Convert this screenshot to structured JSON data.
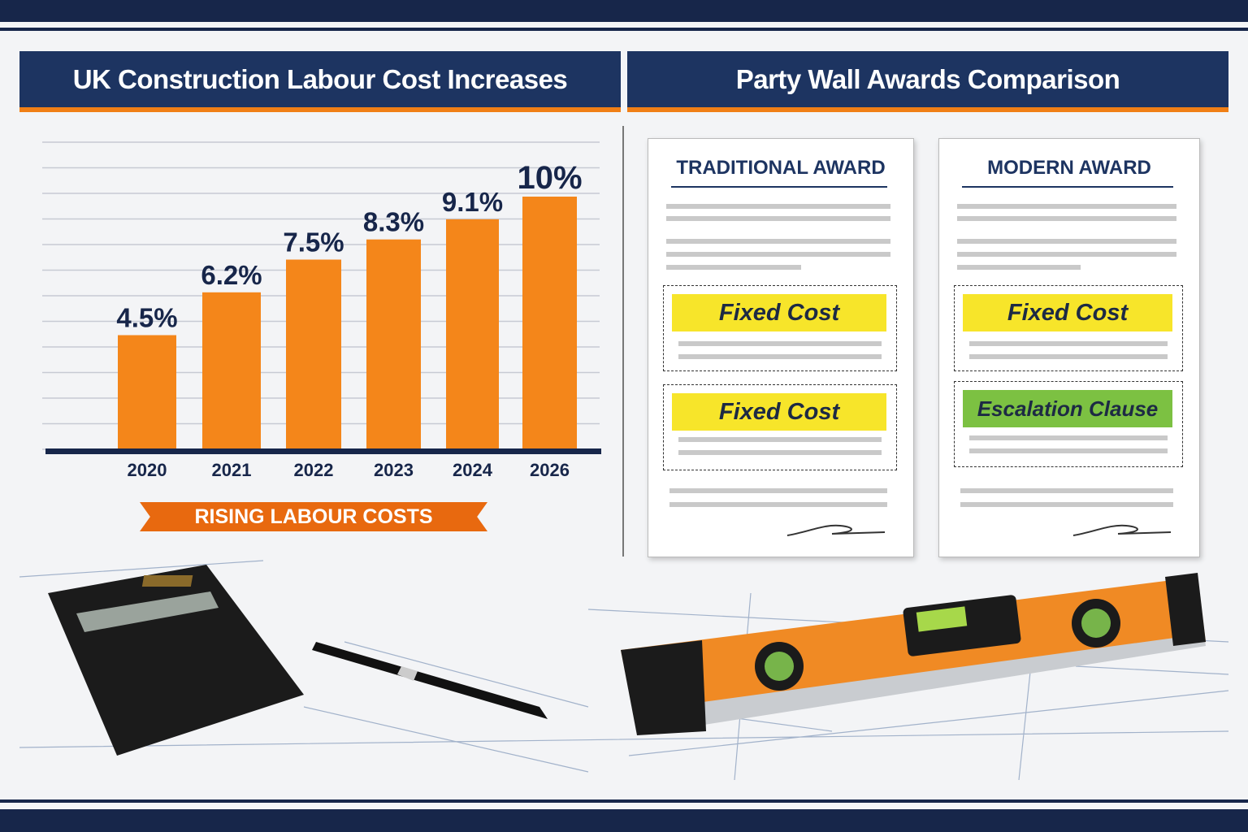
{
  "left_panel": {
    "title": "UK Construction Labour Cost Increases",
    "ribbon": "RISING LABOUR COSTS"
  },
  "right_panel": {
    "title": "Party Wall Awards Comparison",
    "documents": [
      {
        "title": "TRADITIONAL AWARD",
        "clauses": [
          {
            "label": "Fixed Cost",
            "color": "#f7e52a"
          },
          {
            "label": "Fixed Cost",
            "color": "#f7e52a"
          }
        ]
      },
      {
        "title": "MODERN AWARD",
        "clauses": [
          {
            "label": "Fixed Cost",
            "color": "#f7e52a"
          },
          {
            "label": "Escalation Clause",
            "color": "#7cc142"
          }
        ]
      }
    ]
  },
  "chart_data": {
    "type": "bar",
    "title": "UK Construction Labour Cost Increases",
    "categories": [
      "2020",
      "2021",
      "2022",
      "2023",
      "2024",
      "2026"
    ],
    "values": [
      4.5,
      6.2,
      7.5,
      8.3,
      9.1,
      10
    ],
    "data_labels": [
      "4.5%",
      "6.2%",
      "7.5%",
      "8.3%",
      "9.1%",
      "10%"
    ],
    "xlabel": "",
    "ylabel": "",
    "grid": true,
    "colors": {
      "bar": "#f4861a",
      "axis": "#17264a",
      "label": "#17264a"
    }
  },
  "colors": {
    "navy": "#1d3461",
    "orange": "#f07f16"
  }
}
